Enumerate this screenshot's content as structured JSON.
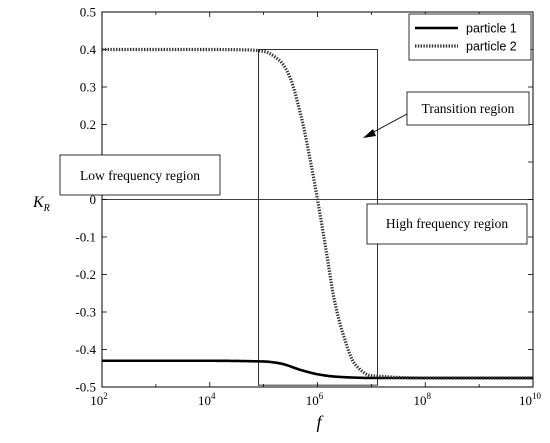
{
  "chart_data": {
    "type": "line",
    "xscale": "log",
    "x_decades": [
      2,
      4,
      6,
      8,
      10
    ],
    "xlim": [
      100,
      10000000000
    ],
    "ylim": [
      -0.5,
      0.5
    ],
    "yticks": [
      "0.5",
      "0.4",
      "0.3",
      "0.2",
      "0.1",
      "0",
      "-0.1",
      "-0.2",
      "-0.3",
      "-0.4",
      "-0.5"
    ],
    "xtick_base": "10",
    "xlabel": "f",
    "ylabel": "K",
    "ylabel_sub": "R",
    "grid": false,
    "legend_position": "top-right",
    "series": [
      {
        "name": "particle 1",
        "color": "#000000",
        "style": "solid",
        "x": [
          100,
          1000,
          10000,
          100000,
          200000,
          500000,
          1000000,
          2000000,
          5000000,
          10000000,
          100000000,
          1000000000,
          10000000000
        ],
        "y": [
          -0.43,
          -0.43,
          -0.43,
          -0.432,
          -0.437,
          -0.455,
          -0.466,
          -0.472,
          -0.475,
          -0.476,
          -0.476,
          -0.476,
          -0.476
        ]
      },
      {
        "name": "particle 2",
        "color": "#333333",
        "style": "dotted",
        "x": [
          100,
          1000,
          10000,
          50000,
          100000,
          200000,
          300000,
          500000,
          700000,
          1000000,
          1500000,
          2000000,
          3000000,
          5000000,
          10000000,
          100000000,
          10000000000
        ],
        "y": [
          0.4,
          0.4,
          0.4,
          0.399,
          0.395,
          0.37,
          0.33,
          0.22,
          0.12,
          0.0,
          -0.15,
          -0.26,
          -0.36,
          -0.44,
          -0.47,
          -0.476,
          -0.476
        ]
      }
    ],
    "annotations": {
      "transition": "Transition region",
      "low": "Low frequency region",
      "high": "High frequency region"
    }
  }
}
